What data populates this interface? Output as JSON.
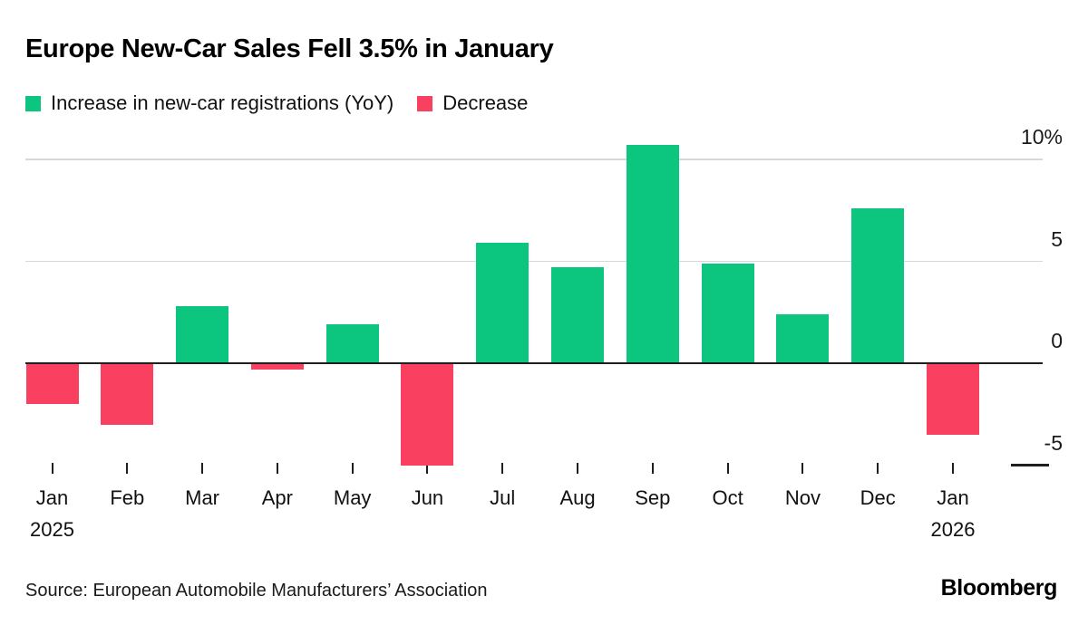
{
  "header": {
    "title": "Europe New-Car Sales Fell 3.5% in January"
  },
  "legend": {
    "increase_label": "Increase in new-car registrations (YoY)",
    "decrease_label": "Decrease"
  },
  "colors": {
    "increase": "#0cc57e",
    "decrease": "#fa4060",
    "gridline": "#d8d8d8",
    "axis": "#1f1f1f"
  },
  "chart_data": {
    "type": "bar",
    "title": "Europe New-Car Sales Fell 3.5% in January",
    "unit": "%",
    "ylim": [
      -6.5,
      11
    ],
    "grid": "horizontal",
    "legend_position": "top",
    "categories": [
      "Jan",
      "Feb",
      "Mar",
      "Apr",
      "May",
      "Jun",
      "Jul",
      "Aug",
      "Sep",
      "Oct",
      "Nov",
      "Dec",
      "Jan"
    ],
    "sublabels": [
      "2025",
      "",
      "",
      "",
      "",
      "",
      "",
      "",
      "",
      "",
      "",
      "",
      "2026"
    ],
    "values": [
      -2.0,
      -3.0,
      2.8,
      -0.3,
      1.9,
      -5.0,
      5.9,
      4.7,
      10.7,
      4.9,
      2.4,
      7.6,
      -3.5
    ],
    "series": [
      {
        "name": "Increase in new-car registrations (YoY)",
        "rule": "values >= 0",
        "color": "#0cc57e"
      },
      {
        "name": "Decrease",
        "rule": "values < 0",
        "color": "#fa4060"
      }
    ],
    "yticks": [
      {
        "label": "10%",
        "value": 10,
        "line": "grid"
      },
      {
        "label": "5",
        "value": 5,
        "line": "grid"
      },
      {
        "label": "0",
        "value": 0,
        "line": "axis"
      },
      {
        "label": "-5",
        "value": -5,
        "line": "dash"
      }
    ]
  },
  "footer": {
    "source": "Source: European Automobile Manufacturers’ Association",
    "brand": "Bloomberg"
  }
}
